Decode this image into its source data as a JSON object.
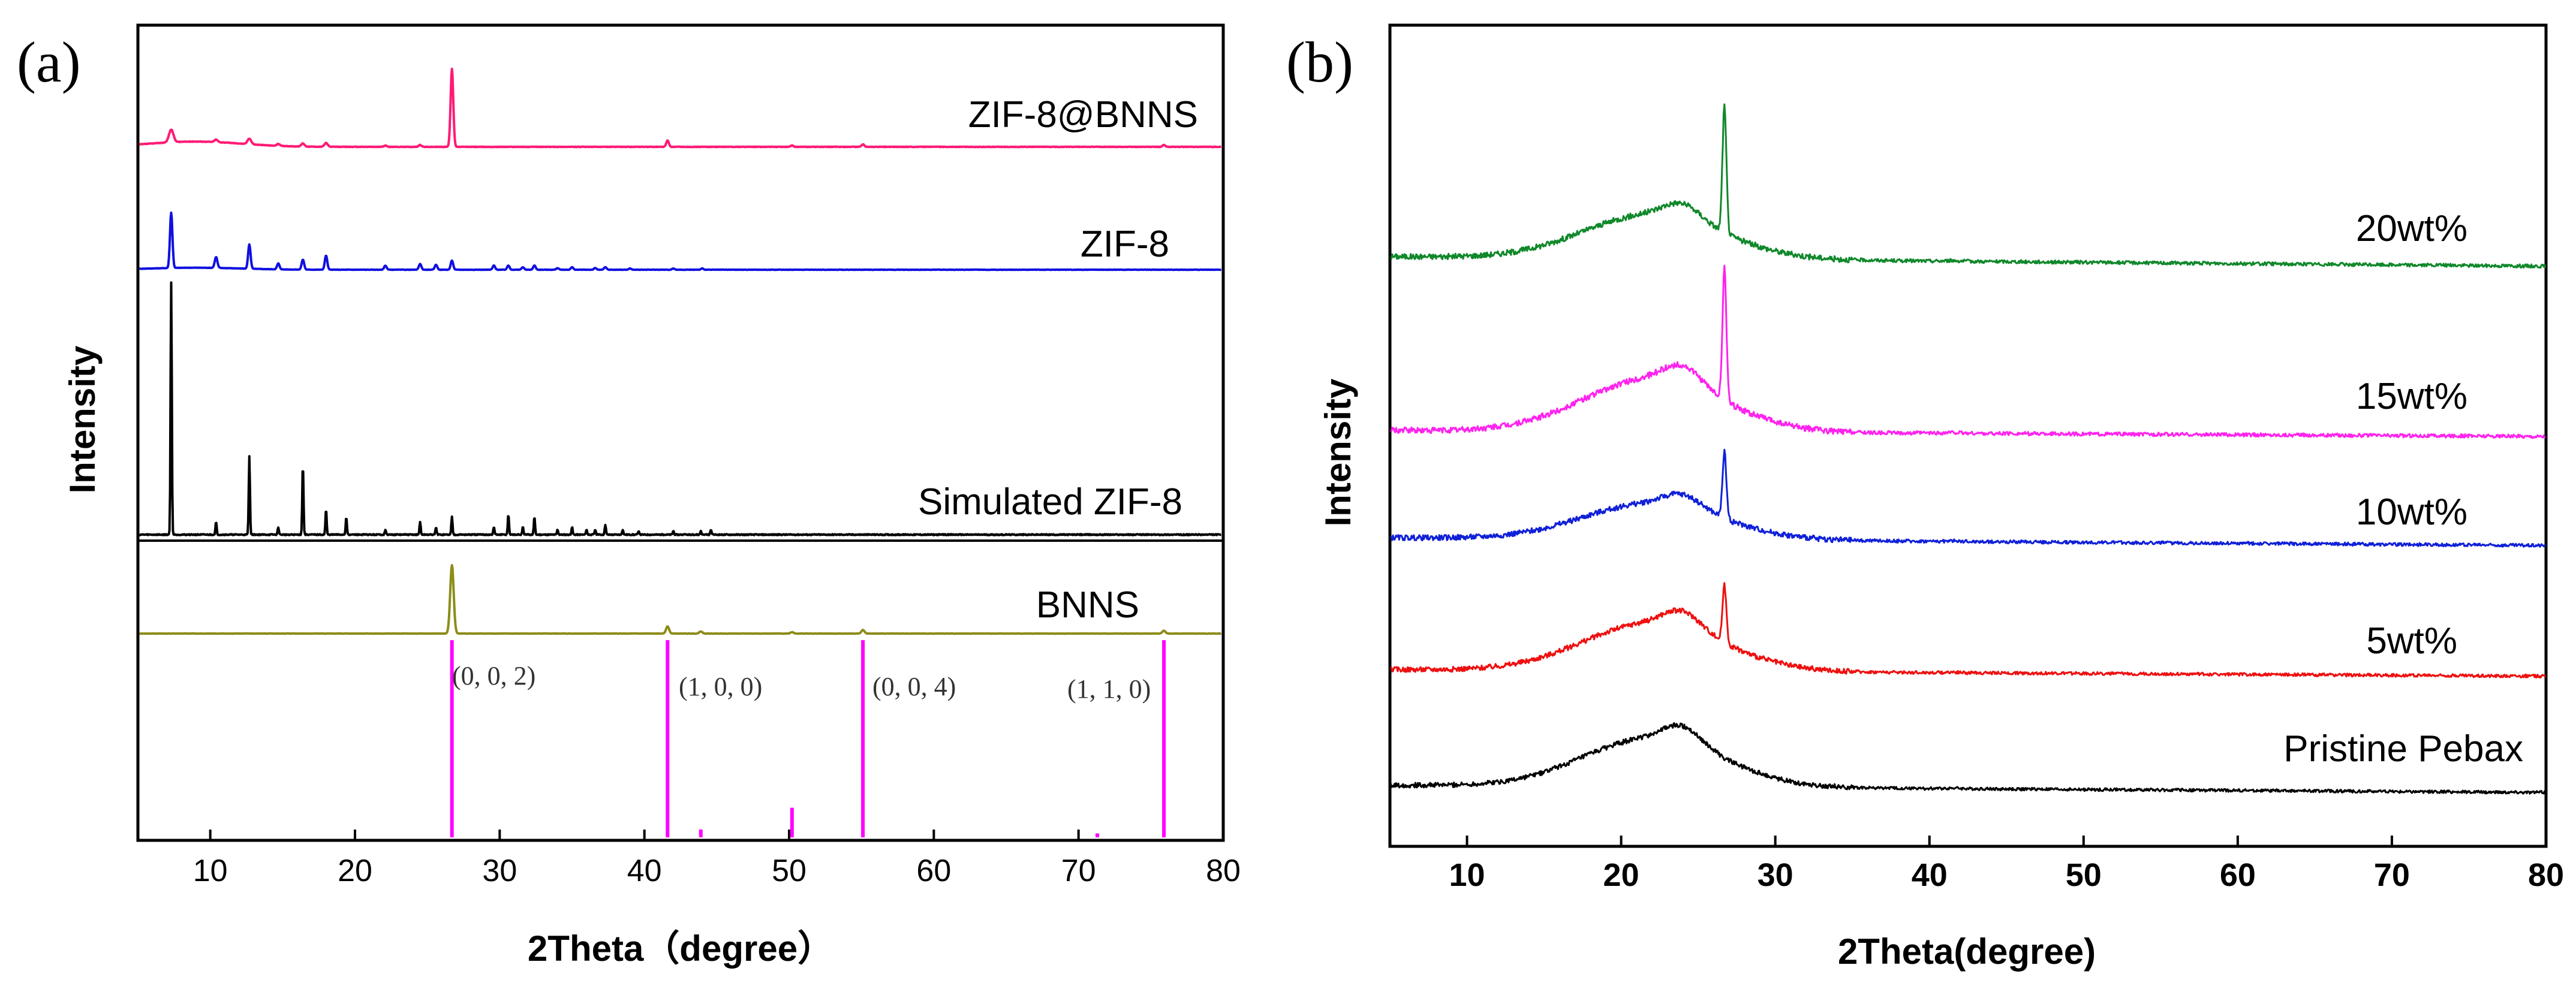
{
  "chart_data": [
    {
      "panel_label": "(a)",
      "type": "line",
      "title": "",
      "xlabel": "2Theta（degree）",
      "ylabel": "Intensity",
      "xlim": [
        5,
        80
      ],
      "xticks": [
        "10",
        "20",
        "30",
        "40",
        "50",
        "60",
        "70",
        "80"
      ],
      "grid": false,
      "series": [
        {
          "name": "ZIF-8@BNNS",
          "color": "#ff1a75",
          "baseline": 0.14,
          "peaks": [
            [
              7.3,
              0.1,
              0.22
            ],
            [
              10.4,
              0.02,
              0.15
            ],
            [
              12.7,
              0.045,
              0.18
            ],
            [
              14.7,
              0.015,
              0.14
            ],
            [
              16.4,
              0.025,
              0.15
            ],
            [
              18.0,
              0.03,
              0.16
            ],
            [
              22.1,
              0.01,
              0.14
            ],
            [
              24.5,
              0.015,
              0.14
            ],
            [
              26.7,
              0.62,
              0.13
            ],
            [
              41.6,
              0.05,
              0.13
            ],
            [
              50.2,
              0.01,
              0.13
            ],
            [
              55.1,
              0.02,
              0.13
            ],
            [
              75.9,
              0.015,
              0.13
            ]
          ]
        },
        {
          "name": "ZIF-8",
          "color": "#1010e0",
          "baseline": 0.08,
          "peaks": [
            [
              7.3,
              0.66,
              0.12
            ],
            [
              10.4,
              0.13,
              0.13
            ],
            [
              12.7,
              0.29,
              0.12
            ],
            [
              14.7,
              0.07,
              0.12
            ],
            [
              16.4,
              0.12,
              0.12
            ],
            [
              18.0,
              0.17,
              0.12
            ],
            [
              22.1,
              0.05,
              0.12
            ],
            [
              24.5,
              0.07,
              0.12
            ],
            [
              25.6,
              0.06,
              0.12
            ],
            [
              26.7,
              0.11,
              0.12
            ],
            [
              29.6,
              0.05,
              0.12
            ],
            [
              30.6,
              0.05,
              0.12
            ],
            [
              31.6,
              0.03,
              0.12
            ],
            [
              32.4,
              0.05,
              0.12
            ],
            [
              34.0,
              0.02,
              0.12
            ],
            [
              35.0,
              0.03,
              0.12
            ],
            [
              36.6,
              0.02,
              0.12
            ],
            [
              37.3,
              0.03,
              0.12
            ],
            [
              39.0,
              0.015,
              0.12
            ],
            [
              42.0,
              0.015,
              0.12
            ],
            [
              44.0,
              0.015,
              0.12
            ]
          ]
        },
        {
          "name": "Simulated ZIF-8",
          "color": "#000000",
          "baseline": 0.0,
          "peaks": [
            [
              7.3,
              1.0,
              0.06
            ],
            [
              10.4,
              0.05,
              0.06
            ],
            [
              12.7,
              0.31,
              0.06
            ],
            [
              14.7,
              0.03,
              0.06
            ],
            [
              16.4,
              0.28,
              0.06
            ],
            [
              18.0,
              0.1,
              0.06
            ],
            [
              19.4,
              0.07,
              0.06
            ],
            [
              22.1,
              0.02,
              0.06
            ],
            [
              24.5,
              0.05,
              0.06
            ],
            [
              25.6,
              0.03,
              0.06
            ],
            [
              26.7,
              0.07,
              0.06
            ],
            [
              29.6,
              0.03,
              0.06
            ],
            [
              30.6,
              0.08,
              0.06
            ],
            [
              31.6,
              0.03,
              0.06
            ],
            [
              32.4,
              0.07,
              0.06
            ],
            [
              34.0,
              0.02,
              0.06
            ],
            [
              35.0,
              0.03,
              0.06
            ],
            [
              36.0,
              0.02,
              0.06
            ],
            [
              36.6,
              0.02,
              0.06
            ],
            [
              37.3,
              0.04,
              0.06
            ],
            [
              38.5,
              0.02,
              0.06
            ],
            [
              39.6,
              0.015,
              0.06
            ],
            [
              42.0,
              0.015,
              0.06
            ],
            [
              43.9,
              0.015,
              0.06
            ],
            [
              44.6,
              0.02,
              0.06
            ]
          ]
        },
        {
          "name": "BNNS",
          "color": "#8c8c1a",
          "baseline": 0.0,
          "peaks": [
            [
              26.7,
              0.95,
              0.17
            ],
            [
              41.6,
              0.1,
              0.15
            ],
            [
              43.9,
              0.03,
              0.15
            ],
            [
              50.2,
              0.02,
              0.15
            ],
            [
              55.1,
              0.05,
              0.15
            ],
            [
              75.9,
              0.04,
              0.15
            ]
          ]
        }
      ],
      "reference_sticks": {
        "color": "#ff00ff",
        "positions": [
          26.7,
          41.6,
          43.9,
          50.2,
          55.1,
          71.3,
          75.9
        ],
        "heights": [
          1.0,
          1.0,
          0.04,
          0.15,
          1.0,
          0.02,
          1.0
        ]
      },
      "annotations": [
        {
          "label": "(0, 0, 2)",
          "x": 26.7
        },
        {
          "label": "(1, 0, 0)",
          "x": 41.6
        },
        {
          "label": "(0, 0, 4)",
          "x": 55.1
        },
        {
          "label": "(1, 1, 0)",
          "x": 75.9
        }
      ]
    },
    {
      "panel_label": "(b)",
      "type": "line",
      "title": "",
      "xlabel": "2Theta(degree)",
      "ylabel": "Intensity",
      "xlim": [
        5,
        80
      ],
      "xticks": [
        "10",
        "20",
        "30",
        "40",
        "50",
        "60",
        "70",
        "80"
      ],
      "grid": false,
      "series": [
        {
          "name": "20wt%",
          "color": "#10882a",
          "hump": 0.35,
          "peak": 1.0,
          "noise": 0.045
        },
        {
          "name": "15wt%",
          "color": "#ff22ee",
          "hump": 0.4,
          "peak": 1.0,
          "noise": 0.045
        },
        {
          "name": "10wt%",
          "color": "#1020d8",
          "hump": 0.3,
          "peak": 0.55,
          "noise": 0.045
        },
        {
          "name": "5wt%",
          "color": "#ee1010",
          "hump": 0.42,
          "peak": 0.5,
          "noise": 0.045
        },
        {
          "name": "Pristine Pebax",
          "color": "#000000",
          "hump": 0.45,
          "peak": 0.0,
          "noise": 0.045
        }
      ]
    }
  ]
}
